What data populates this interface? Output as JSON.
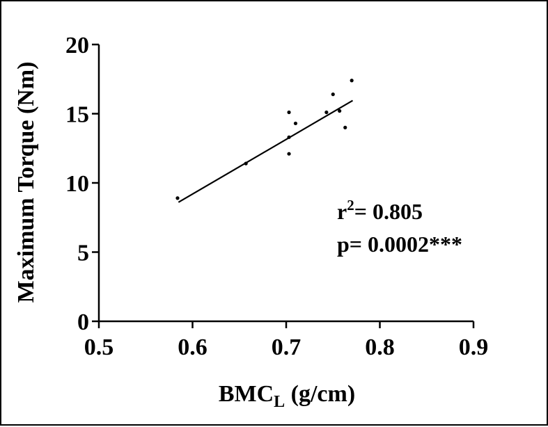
{
  "chart_data": {
    "type": "scatter",
    "title": "",
    "xlabel": "BMC",
    "xlabel_subscript": "L",
    "xlabel_unit": " (g/cm)",
    "ylabel": "Maximum Torque (Nm)",
    "xlim": [
      0.5,
      0.9
    ],
    "ylim": [
      0,
      20
    ],
    "x_ticks": [
      0.5,
      0.6,
      0.7,
      0.8,
      0.9
    ],
    "x_tick_labels": [
      "0.5",
      "0.6",
      "0.7",
      "0.8",
      "0.9"
    ],
    "y_ticks": [
      0,
      5,
      10,
      15,
      20
    ],
    "y_tick_labels": [
      "0",
      "5",
      "10",
      "15",
      "20"
    ],
    "grid": false,
    "series": [
      {
        "points": [
          {
            "x": 0.584,
            "y": 8.9
          },
          {
            "x": 0.657,
            "y": 11.4
          },
          {
            "x": 0.703,
            "y": 15.1
          },
          {
            "x": 0.703,
            "y": 13.3
          },
          {
            "x": 0.703,
            "y": 12.1
          },
          {
            "x": 0.71,
            "y": 14.3
          },
          {
            "x": 0.743,
            "y": 15.1
          },
          {
            "x": 0.75,
            "y": 16.4
          },
          {
            "x": 0.757,
            "y": 15.2
          },
          {
            "x": 0.763,
            "y": 14.0
          },
          {
            "x": 0.77,
            "y": 17.4
          }
        ]
      }
    ],
    "regression_line": {
      "x": [
        0.585,
        0.771
      ],
      "y": [
        8.6,
        15.95
      ]
    },
    "annotations": {
      "r2_prefix": "r",
      "r2_superscript": "2",
      "r2_text": "= 0.805",
      "p_text": "p= 0.0002***"
    }
  }
}
